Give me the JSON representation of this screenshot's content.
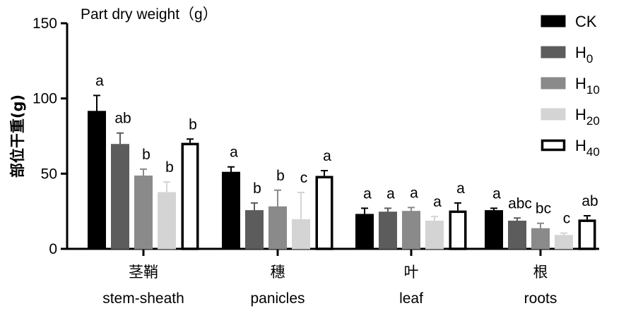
{
  "chart_data": {
    "type": "bar",
    "title": "Part dry weight（g）",
    "ylabel": "部位干重(g)",
    "ylim": [
      0,
      150
    ],
    "yticks": [
      0,
      50,
      100,
      150
    ],
    "grid": false,
    "legend_position": "top-right",
    "categories": [
      {
        "cn": "茎鞘",
        "en": "stem-sheath"
      },
      {
        "cn": "穗",
        "en": "panicles"
      },
      {
        "cn": "叶",
        "en": "leaf"
      },
      {
        "cn": "根",
        "en": "roots"
      }
    ],
    "series": [
      {
        "name": "CK",
        "name_base": "CK",
        "name_sub": "",
        "fill": "#000000",
        "stroke": "#000000",
        "values": [
          91.5,
          51.0,
          23.0,
          25.5
        ],
        "errors": [
          10.5,
          3.5,
          4.0,
          1.5
        ],
        "letters": [
          "a",
          "a",
          "a",
          "a"
        ]
      },
      {
        "name": "H0",
        "name_base": "H",
        "name_sub": "0",
        "fill": "#5c5c5c",
        "stroke": "#5c5c5c",
        "values": [
          69.5,
          25.5,
          24.5,
          18.5
        ],
        "errors": [
          7.5,
          5.0,
          2.5,
          2.0
        ],
        "letters": [
          "ab",
          "b",
          "a",
          "abc"
        ]
      },
      {
        "name": "H10",
        "name_base": "H",
        "name_sub": "10",
        "fill": "#8a8a8a",
        "stroke": "#8a8a8a",
        "values": [
          48.5,
          28.0,
          25.0,
          13.5
        ],
        "errors": [
          4.5,
          11.0,
          2.5,
          3.5
        ],
        "letters": [
          "b",
          "b",
          "a",
          "bc"
        ]
      },
      {
        "name": "H20",
        "name_base": "H",
        "name_sub": "20",
        "fill": "#d4d4d4",
        "stroke": "#d4d4d4",
        "values": [
          37.5,
          19.5,
          18.5,
          9.0
        ],
        "errors": [
          7.0,
          18.0,
          3.0,
          1.5
        ],
        "letters": [
          "b",
          "c",
          "a",
          "c"
        ]
      },
      {
        "name": "H40",
        "name_base": "H",
        "name_sub": "40",
        "fill": "#ffffff",
        "stroke": "#000000",
        "values": [
          70.5,
          48.5,
          25.5,
          19.5
        ],
        "errors": [
          2.5,
          3.5,
          5.0,
          2.5
        ],
        "letters": [
          "b",
          "a",
          "a",
          "ab"
        ]
      }
    ]
  }
}
